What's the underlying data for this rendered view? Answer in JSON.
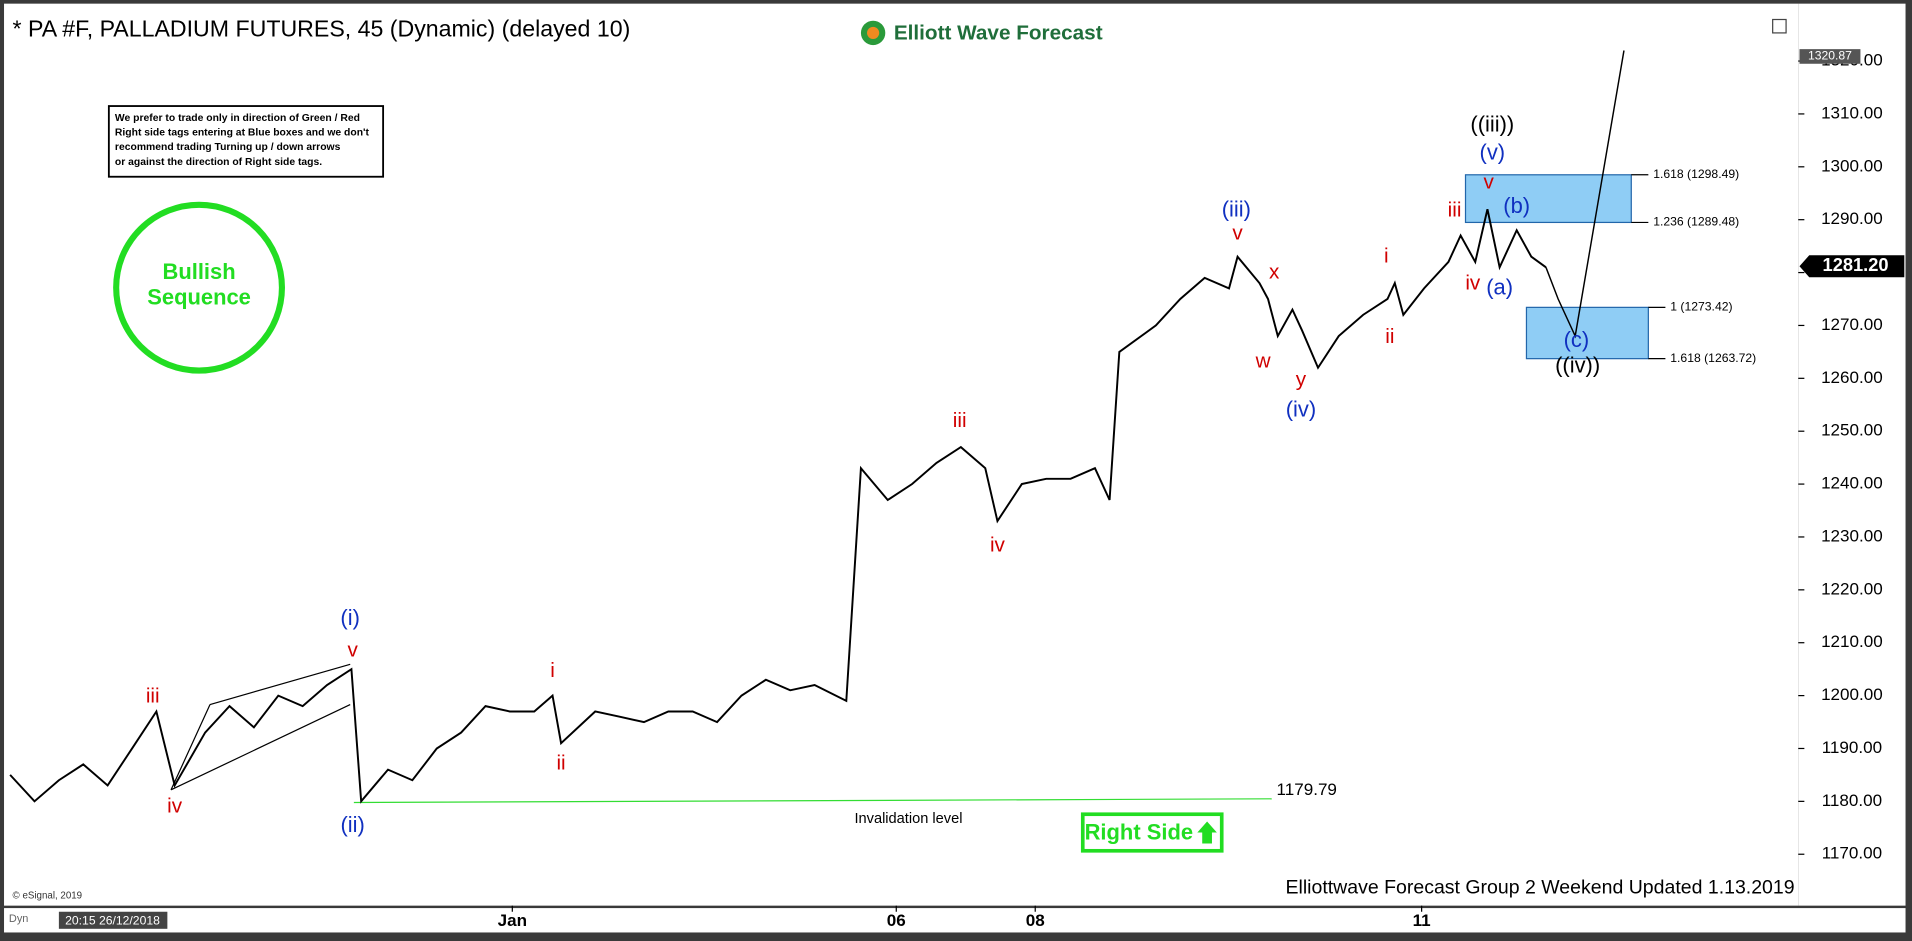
{
  "chart_data": {
    "type": "line",
    "title": "* PA #F, PALLADIUM FUTURES, 45 (Dynamic) (delayed 10)",
    "logo": "Elliott Wave Forecast",
    "note": [
      "We prefer to trade only in direction of Green / Red",
      "Right side tags entering at Blue boxes and we don't",
      "recommend trading Turning up / down arrows",
      "or against the direction of Right side tags."
    ],
    "badge": [
      "Bullish",
      "Sequence"
    ],
    "right_side": "Right Side",
    "footer": "Elliottwave Forecast Group 2 Weekend Updated 1.13.2019",
    "copyright": "© eSignal, 2019",
    "timestamp": "20:15 26/12/2018",
    "corner": "Dyn",
    "invalidation": {
      "label": "Invalidation level",
      "value": 1179.79
    },
    "last_price": {
      "value": 1281.2,
      "label": "1281.20"
    },
    "top_price": 1320.87,
    "xlim": [
      -0.8,
      146.2
    ],
    "ylim": [
      1166.27,
      1328.71
    ],
    "xticks": [
      {
        "value": 41.2,
        "label": "Jan"
      },
      {
        "value": 72.7,
        "label": "06"
      },
      {
        "value": 84.1,
        "label": "08"
      },
      {
        "value": 115.8,
        "label": "11"
      }
    ],
    "yticks": [
      {
        "value": 1170,
        "label": "1170.00"
      },
      {
        "value": 1180,
        "label": "1180.00"
      },
      {
        "value": 1190,
        "label": "1190.00"
      },
      {
        "value": 1200,
        "label": "1200.00"
      },
      {
        "value": 1210,
        "label": "1210.00"
      },
      {
        "value": 1220,
        "label": "1220.00"
      },
      {
        "value": 1230,
        "label": "1230.00"
      },
      {
        "value": 1240,
        "label": "1240.00"
      },
      {
        "value": 1250,
        "label": "1250.00"
      },
      {
        "value": 1260,
        "label": "1260.00"
      },
      {
        "value": 1270,
        "label": "1270.00"
      },
      {
        "value": 1280,
        "label": "1280.00"
      },
      {
        "value": 1290,
        "label": "1290.00"
      },
      {
        "value": 1300,
        "label": "1300.00"
      },
      {
        "value": 1310,
        "label": "1310.00"
      },
      {
        "value": 1320,
        "label": "1320.00"
      }
    ],
    "fib_boxes": [
      {
        "levels": [
          {
            "value": 1298.49,
            "label": "1.618 (1298.49)"
          },
          {
            "value": 1289.48,
            "label": "1.236 (1289.48)"
          }
        ]
      },
      {
        "levels": [
          {
            "value": 1273.42,
            "label": "1 (1273.42)"
          },
          {
            "value": 1263.72,
            "label": "1.618 (1263.72)"
          }
        ]
      }
    ],
    "series": [
      {
        "name": "Price",
        "color": "#000000",
        "x": [
          0,
          2,
          4,
          6,
          8,
          10,
          12,
          13.5,
          16,
          18,
          20,
          22,
          24,
          26,
          28,
          28.8,
          31,
          33,
          35,
          37,
          39,
          41,
          43,
          44.5,
          45.2,
          48,
          50,
          52,
          54,
          56,
          58,
          60,
          62,
          64,
          66,
          68.6,
          69.8,
          72,
          74,
          76,
          78,
          80,
          81,
          83,
          85,
          87,
          89,
          90.2,
          91,
          94,
          96,
          98,
          100,
          100.7,
          102.5,
          103.2,
          104,
          105.2,
          106,
          107.3,
          109,
          111,
          113,
          113.6,
          114.3,
          116,
          118,
          119,
          120.2,
          121.2,
          122.2,
          123.6,
          124.8,
          126
        ],
        "values": [
          1185,
          1180,
          1184,
          1187,
          1183,
          1190,
          1197,
          1183,
          1193,
          1198,
          1194,
          1200,
          1198,
          1202,
          1205,
          1180,
          1186,
          1184,
          1190,
          1193,
          1198,
          1197,
          1197,
          1200,
          1191,
          1197,
          1196,
          1195,
          1197,
          1197,
          1195,
          1200,
          1203,
          1201,
          1202,
          1199,
          1243,
          1237,
          1240,
          1244,
          1247,
          1243,
          1233,
          1240,
          1241,
          1241,
          1243,
          1237,
          1265,
          1270,
          1275,
          1279,
          1277,
          1283,
          1278,
          1275,
          1268,
          1273,
          1269,
          1262,
          1268,
          1272,
          1275,
          1278,
          1272,
          1277,
          1282,
          1287,
          1282,
          1292,
          1281,
          1288,
          1283,
          1281
        ]
      },
      {
        "name": "Projection",
        "color": "#000000",
        "x": [
          126,
          127,
          128.4,
          132.4
        ],
        "values": [
          1281,
          1275,
          1268,
          1322
        ]
      }
    ],
    "wave_labels": [
      {
        "text": "iii",
        "color": "#d00000"
      },
      {
        "text": "iv",
        "color": "#d00000"
      },
      {
        "text": "v",
        "color": "#d00000"
      },
      {
        "text": "i",
        "color": "#d00000"
      },
      {
        "text": "ii",
        "color": "#d00000"
      },
      {
        "text": "iii",
        "color": "#d00000"
      },
      {
        "text": "iv",
        "color": "#d00000"
      },
      {
        "text": "v",
        "color": "#d00000"
      },
      {
        "text": "x",
        "color": "#d00000"
      },
      {
        "text": "w",
        "color": "#d00000"
      },
      {
        "text": "y",
        "color": "#d00000"
      },
      {
        "text": "i",
        "color": "#d00000"
      },
      {
        "text": "ii",
        "color": "#d00000"
      },
      {
        "text": "iii",
        "color": "#d00000"
      },
      {
        "text": "iv",
        "color": "#d00000"
      },
      {
        "text": "v",
        "color": "#d00000"
      },
      {
        "text": "(i)",
        "color": "#1030c0"
      },
      {
        "text": "(ii)",
        "color": "#1030c0"
      },
      {
        "text": "(iii)",
        "color": "#1030c0"
      },
      {
        "text": "(iv)",
        "color": "#1030c0"
      },
      {
        "text": "(v)",
        "color": "#1030c0"
      },
      {
        "text": "(b)",
        "color": "#1030c0"
      },
      {
        "text": "(a)",
        "color": "#1030c0"
      },
      {
        "text": "(c)",
        "color": "#1030c0"
      },
      {
        "text": "((iii))",
        "color": "#000000"
      },
      {
        "text": "((iv))",
        "color": "#000000"
      }
    ]
  }
}
